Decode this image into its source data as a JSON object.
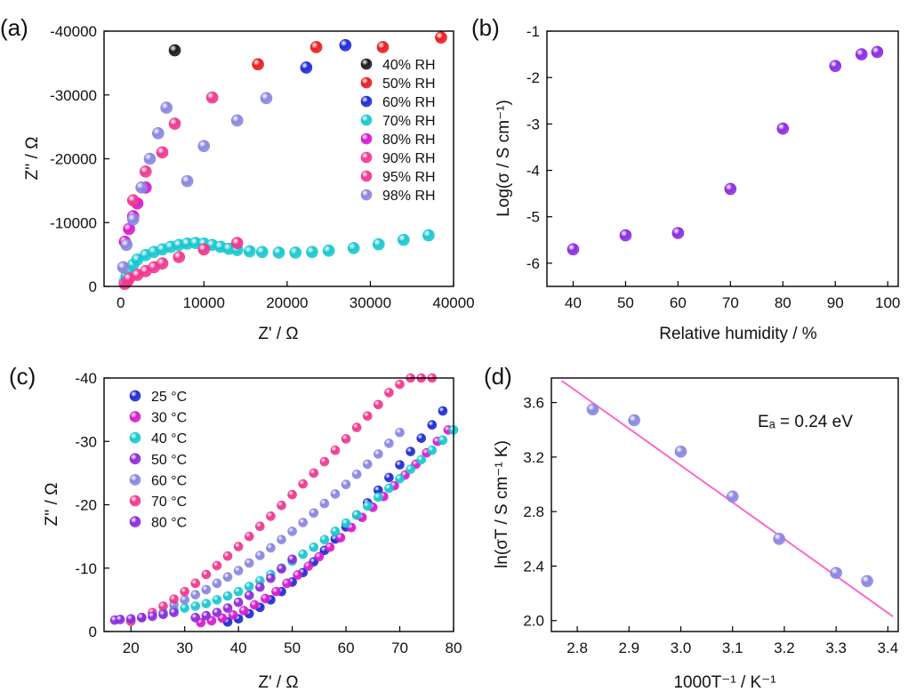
{
  "colors": {
    "black": "#1a1a1a",
    "red": "#e81e1e",
    "blue": "#1f2ad6",
    "cyan": "#18c8d0",
    "magenta": "#d81ad0",
    "pink": "#f0378f",
    "violet": "#8e2ad8",
    "lavender": "#8a86e0",
    "purple": "#8a2be2",
    "fitline": "#ff66cc"
  },
  "chart_data": [
    {
      "id": "a",
      "panel_label": "(a)",
      "type": "scatter",
      "xlabel": "Z' / Ω",
      "ylabel": "Z'' / Ω",
      "xlim": [
        -2000,
        40000
      ],
      "ylim": [
        0,
        -40000
      ],
      "xticks": [
        0,
        10000,
        20000,
        30000,
        40000
      ],
      "xtick_labels": [
        "0",
        "10000",
        "20000",
        "30000",
        "40000"
      ],
      "yticks": [
        0,
        -10000,
        -20000,
        -30000,
        -40000
      ],
      "ytick_labels": [
        "0",
        "-10000",
        "-20000",
        "-30000",
        "-40000"
      ],
      "legend_position": "right",
      "series": [
        {
          "name": "40% RH",
          "color": "black",
          "x": [
            6500
          ],
          "y": [
            -37000
          ]
        },
        {
          "name": "50% RH",
          "color": "red",
          "x": [
            16500,
            23500,
            31500,
            38500
          ],
          "y": [
            -34800,
            -37500,
            -37500,
            -39000
          ]
        },
        {
          "name": "60% RH",
          "color": "blue",
          "x": [
            22300,
            27000
          ],
          "y": [
            -34300,
            -37800
          ]
        },
        {
          "name": "70% RH",
          "color": "cyan",
          "x": [
            500,
            700,
            1000,
            1500,
            2000,
            3000,
            4000,
            5000,
            6000,
            7000,
            8000,
            9000,
            10000,
            11000,
            12000,
            13000,
            14000,
            15500,
            17000,
            19000,
            21000,
            23000,
            25000,
            28000,
            31000,
            34000,
            37000
          ],
          "y": [
            -800,
            -1600,
            -2400,
            -3400,
            -4200,
            -4900,
            -5400,
            -5800,
            -6200,
            -6500,
            -6700,
            -6800,
            -6700,
            -6500,
            -6200,
            -5900,
            -5700,
            -5500,
            -5400,
            -5300,
            -5300,
            -5400,
            -5600,
            -6000,
            -6600,
            -7300,
            -8000
          ]
        },
        {
          "name": "80% RH",
          "color": "magenta",
          "x": [
            500,
            1000,
            1500,
            2000,
            3000
          ],
          "y": [
            -7000,
            -9000,
            -11000,
            -13000,
            -15500
          ]
        },
        {
          "name": "90% RH",
          "color": "pink",
          "x": [
            500,
            800,
            1000,
            2000,
            3000,
            4000,
            5000,
            7000,
            10000,
            14000
          ],
          "y": [
            -400,
            -800,
            -1200,
            -1800,
            -2400,
            -3000,
            -3600,
            -4600,
            -5800,
            -6800
          ]
        },
        {
          "name": "95% RH",
          "color": "pink",
          "x": [
            1500,
            3000,
            5000,
            6500,
            11000
          ],
          "y": [
            -13500,
            -18000,
            -21000,
            -25500,
            -29600
          ]
        },
        {
          "name": "98% RH",
          "color": "lavender",
          "x": [
            300,
            700,
            1500,
            2500,
            3500,
            4500,
            5500,
            8000,
            10000,
            14000,
            17500
          ],
          "y": [
            -3000,
            -6500,
            -10500,
            -15500,
            -20000,
            -24000,
            -28000,
            -16500,
            -22000,
            -26000,
            -29500
          ]
        }
      ]
    },
    {
      "id": "b",
      "panel_label": "(b)",
      "type": "scatter",
      "xlabel": "Relative humidity / %",
      "ylabel": "Log(σ / S cm⁻¹)",
      "xlim": [
        35,
        102
      ],
      "ylim": [
        -6.5,
        -1
      ],
      "xticks": [
        40,
        50,
        60,
        70,
        80,
        90,
        100
      ],
      "xtick_labels": [
        "40",
        "50",
        "60",
        "70",
        "80",
        "90",
        "100"
      ],
      "yticks": [
        -1,
        -2,
        -3,
        -4,
        -5,
        -6
      ],
      "ytick_labels": [
        "-1",
        "-2",
        "-3",
        "-4",
        "-5",
        "-6"
      ],
      "series": [
        {
          "color": "purple",
          "x": [
            40,
            50,
            60,
            70,
            80,
            90,
            95,
            98
          ],
          "y": [
            -5.7,
            -5.4,
            -5.35,
            -4.4,
            -3.1,
            -1.75,
            -1.5,
            -1.45
          ]
        }
      ]
    },
    {
      "id": "c",
      "panel_label": "(c)",
      "type": "scatter",
      "xlabel": "Z' / Ω",
      "ylabel": "Z'' / Ω",
      "xlim": [
        15,
        80
      ],
      "ylim": [
        0,
        -40
      ],
      "xticks": [
        20,
        30,
        40,
        50,
        60,
        70,
        80
      ],
      "xtick_labels": [
        "20",
        "30",
        "40",
        "50",
        "60",
        "70",
        "80"
      ],
      "yticks": [
        0,
        -10,
        -20,
        -30,
        -40
      ],
      "ytick_labels": [
        "0",
        "-10",
        "-20",
        "-30",
        "-40"
      ],
      "legend_position": "top-left",
      "series": [
        {
          "name": "25 °C",
          "color": "blue",
          "x": [
            38,
            40,
            42,
            44,
            46,
            48,
            50,
            52,
            54,
            56,
            58,
            60,
            62,
            64,
            66,
            68,
            70,
            72,
            74,
            76,
            78
          ],
          "y": [
            -1.5,
            -2,
            -2.8,
            -3.8,
            -5,
            -6.3,
            -7.8,
            -9.3,
            -11,
            -12.8,
            -14.6,
            -16.5,
            -18.4,
            -20.3,
            -22.3,
            -24.3,
            -26.3,
            -28.4,
            -30.5,
            -32.6,
            -34.8
          ]
        },
        {
          "name": "30 °C",
          "color": "magenta",
          "x": [
            33,
            35,
            37,
            39,
            41,
            43,
            45,
            47,
            49,
            51,
            53,
            55,
            57,
            59,
            61,
            63,
            65,
            67,
            69,
            71,
            73,
            75,
            77,
            79
          ],
          "y": [
            -1.4,
            -1.7,
            -2.1,
            -2.6,
            -3.3,
            -4.2,
            -5.2,
            -6.3,
            -7.6,
            -8.9,
            -10.3,
            -11.8,
            -13.3,
            -14.8,
            -16.4,
            -18,
            -19.6,
            -21.3,
            -23,
            -24.7,
            -26.4,
            -28.2,
            -30,
            -31.8
          ]
        },
        {
          "name": "40 °C",
          "color": "cyan",
          "x": [
            26,
            28,
            30,
            32,
            34,
            36,
            38,
            40,
            42,
            44,
            46,
            48,
            50,
            52,
            54,
            56,
            58,
            60,
            62,
            64,
            66,
            68,
            70,
            72,
            74,
            76,
            78,
            80
          ],
          "y": [
            -3,
            -3.4,
            -3.7,
            -4,
            -4.4,
            -5,
            -5.6,
            -6.3,
            -7.1,
            -8,
            -9,
            -10,
            -11.1,
            -12.2,
            -13.3,
            -14.5,
            -15.8,
            -17.1,
            -18.4,
            -19.8,
            -21.2,
            -22.6,
            -24.1,
            -25.6,
            -27.1,
            -28.6,
            -30.2,
            -31.8
          ]
        },
        {
          "name": "50 °C",
          "color": "violet",
          "x": [
            32,
            34,
            36,
            38,
            40,
            42,
            44,
            46,
            48,
            50
          ],
          "y": [
            -2.2,
            -2.5,
            -3,
            -3.7,
            -4.6,
            -5.7,
            -7,
            -8.4,
            -9.9,
            -11.4
          ]
        },
        {
          "name": "60 °C",
          "color": "lavender",
          "x": [
            28,
            30,
            32,
            34,
            36,
            38,
            40,
            42,
            44,
            46,
            48,
            50,
            52,
            54,
            56,
            58,
            60,
            62,
            64,
            66,
            68,
            70
          ],
          "y": [
            -4.2,
            -5,
            -5.8,
            -6.6,
            -7.6,
            -8.6,
            -9.6,
            -10.8,
            -12,
            -13.2,
            -14.5,
            -15.8,
            -17.2,
            -18.7,
            -20.2,
            -21.7,
            -23.2,
            -24.8,
            -26.4,
            -28,
            -29.7,
            -31.4
          ]
        },
        {
          "name": "70 °C",
          "color": "pink",
          "x": [
            20,
            22,
            24,
            26,
            28,
            30,
            32,
            34,
            36,
            38,
            40,
            42,
            44,
            46,
            48,
            50,
            52,
            54,
            56,
            58,
            60,
            62,
            64,
            66,
            68,
            70,
            72,
            74,
            76
          ],
          "y": [
            -1.6,
            -2.2,
            -3,
            -4,
            -5.1,
            -6.3,
            -7.6,
            -9,
            -10.4,
            -11.9,
            -13.4,
            -15,
            -16.6,
            -18.2,
            -19.9,
            -21.6,
            -23.3,
            -25,
            -26.8,
            -28.6,
            -30.4,
            -32.2,
            -34,
            -35.8,
            -37.7,
            -39,
            -40,
            -40,
            -40
          ]
        },
        {
          "name": "80 °C",
          "color": "purple",
          "x": [
            17,
            18,
            20,
            22,
            24,
            26,
            28
          ],
          "y": [
            -1.8,
            -1.9,
            -2,
            -2.2,
            -2.4,
            -2.7,
            -3
          ]
        }
      ]
    },
    {
      "id": "d",
      "panel_label": "(d)",
      "type": "scatter",
      "xlabel": "1000T⁻¹ / K⁻¹",
      "ylabel": "ln(σT / S cm⁻¹ K)",
      "annotation": "Eₐ = 0.24 eV",
      "xlim": [
        2.75,
        3.42
      ],
      "ylim": [
        1.92,
        3.78
      ],
      "xticks": [
        2.8,
        2.9,
        3.0,
        3.1,
        3.2,
        3.3,
        3.4
      ],
      "xtick_labels": [
        "2.8",
        "2.9",
        "3.0",
        "3.1",
        "3.2",
        "3.3",
        "3.4"
      ],
      "yticks": [
        2.0,
        2.4,
        2.8,
        3.2,
        3.6
      ],
      "ytick_labels": [
        "2.0",
        "2.4",
        "2.8",
        "3.2",
        "3.6"
      ],
      "series": [
        {
          "color": "lavender",
          "x": [
            2.83,
            2.91,
            3.0,
            3.1,
            3.19,
            3.3,
            3.36
          ],
          "y": [
            3.55,
            3.47,
            3.24,
            2.91,
            2.6,
            2.35,
            2.29
          ]
        }
      ],
      "fit": {
        "color": "fitline",
        "x": [
          2.77,
          3.41
        ],
        "y": [
          3.76,
          2.03
        ]
      }
    }
  ]
}
